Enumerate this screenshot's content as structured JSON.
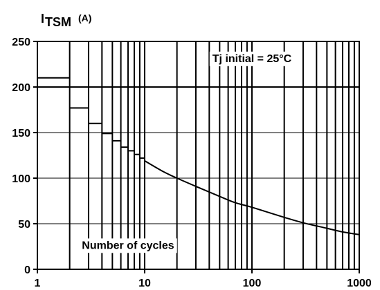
{
  "chart_data": {
    "type": "line",
    "ylabel_main": "I",
    "ylabel_sub": "TSM",
    "ylabel_unit": "(A)",
    "x_scale": "log",
    "xlim": [
      1,
      1000
    ],
    "ylim": [
      0,
      250
    ],
    "x_ticks": [
      {
        "value": 1,
        "label": "1"
      },
      {
        "value": 10,
        "label": "10"
      },
      {
        "value": 100,
        "label": "100"
      },
      {
        "value": 1000,
        "label": "1000"
      }
    ],
    "y_ticks": [
      {
        "value": 0,
        "label": "0"
      },
      {
        "value": 50,
        "label": "50"
      },
      {
        "value": 100,
        "label": "100"
      },
      {
        "value": 150,
        "label": "150"
      },
      {
        "value": 200,
        "label": "200"
      },
      {
        "value": 250,
        "label": "250"
      }
    ],
    "grid": true,
    "annotations": [
      {
        "text": "Tj initial = 25°C",
        "x": 100,
        "y": 232
      },
      {
        "text": "Number of cycles",
        "x": 7,
        "y": 27
      }
    ],
    "steps": [
      {
        "x_start": 1,
        "x_end": 2,
        "y": 210
      },
      {
        "x_start": 2,
        "x_end": 3,
        "y": 177
      },
      {
        "x_start": 3,
        "x_end": 4,
        "y": 160
      },
      {
        "x_start": 4,
        "x_end": 5,
        "y": 149
      },
      {
        "x_start": 5,
        "x_end": 6,
        "y": 141
      },
      {
        "x_start": 6,
        "x_end": 7,
        "y": 134
      },
      {
        "x_start": 7,
        "x_end": 8,
        "y": 130
      },
      {
        "x_start": 8,
        "x_end": 9,
        "y": 126
      },
      {
        "x_start": 9,
        "x_end": 10,
        "y": 122
      }
    ],
    "series": [
      {
        "x": [
          10,
          15,
          20,
          30,
          50,
          70,
          100,
          200,
          300,
          500,
          700,
          1000
        ],
        "y": [
          119,
          107,
          100,
          91,
          80,
          73,
          68,
          57,
          51,
          45,
          41,
          38
        ]
      }
    ]
  }
}
